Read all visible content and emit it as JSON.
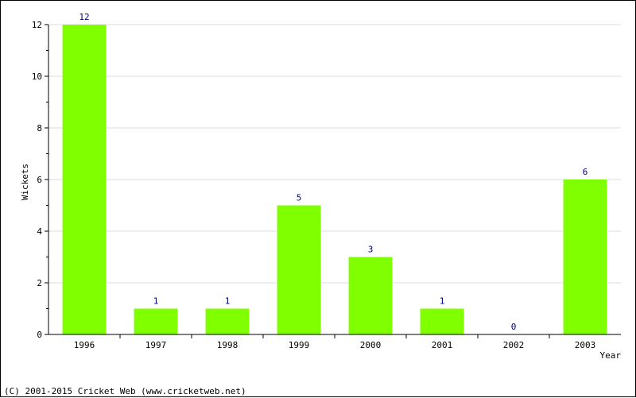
{
  "chart_data": {
    "type": "bar",
    "categories": [
      "1996",
      "1997",
      "1998",
      "1999",
      "2000",
      "2001",
      "2002",
      "2003"
    ],
    "values": [
      12,
      1,
      1,
      5,
      3,
      1,
      0,
      6
    ],
    "title": "",
    "xlabel": "Year",
    "ylabel": "Wickets",
    "ylim": [
      0,
      12
    ],
    "yticks": [
      0,
      2,
      4,
      6,
      8,
      10,
      12
    ],
    "grid": true,
    "bar_color": "#80ff00",
    "value_label_color": "#000080"
  },
  "footer": {
    "copyright": "(C) 2001-2015 Cricket Web (www.cricketweb.net)"
  }
}
